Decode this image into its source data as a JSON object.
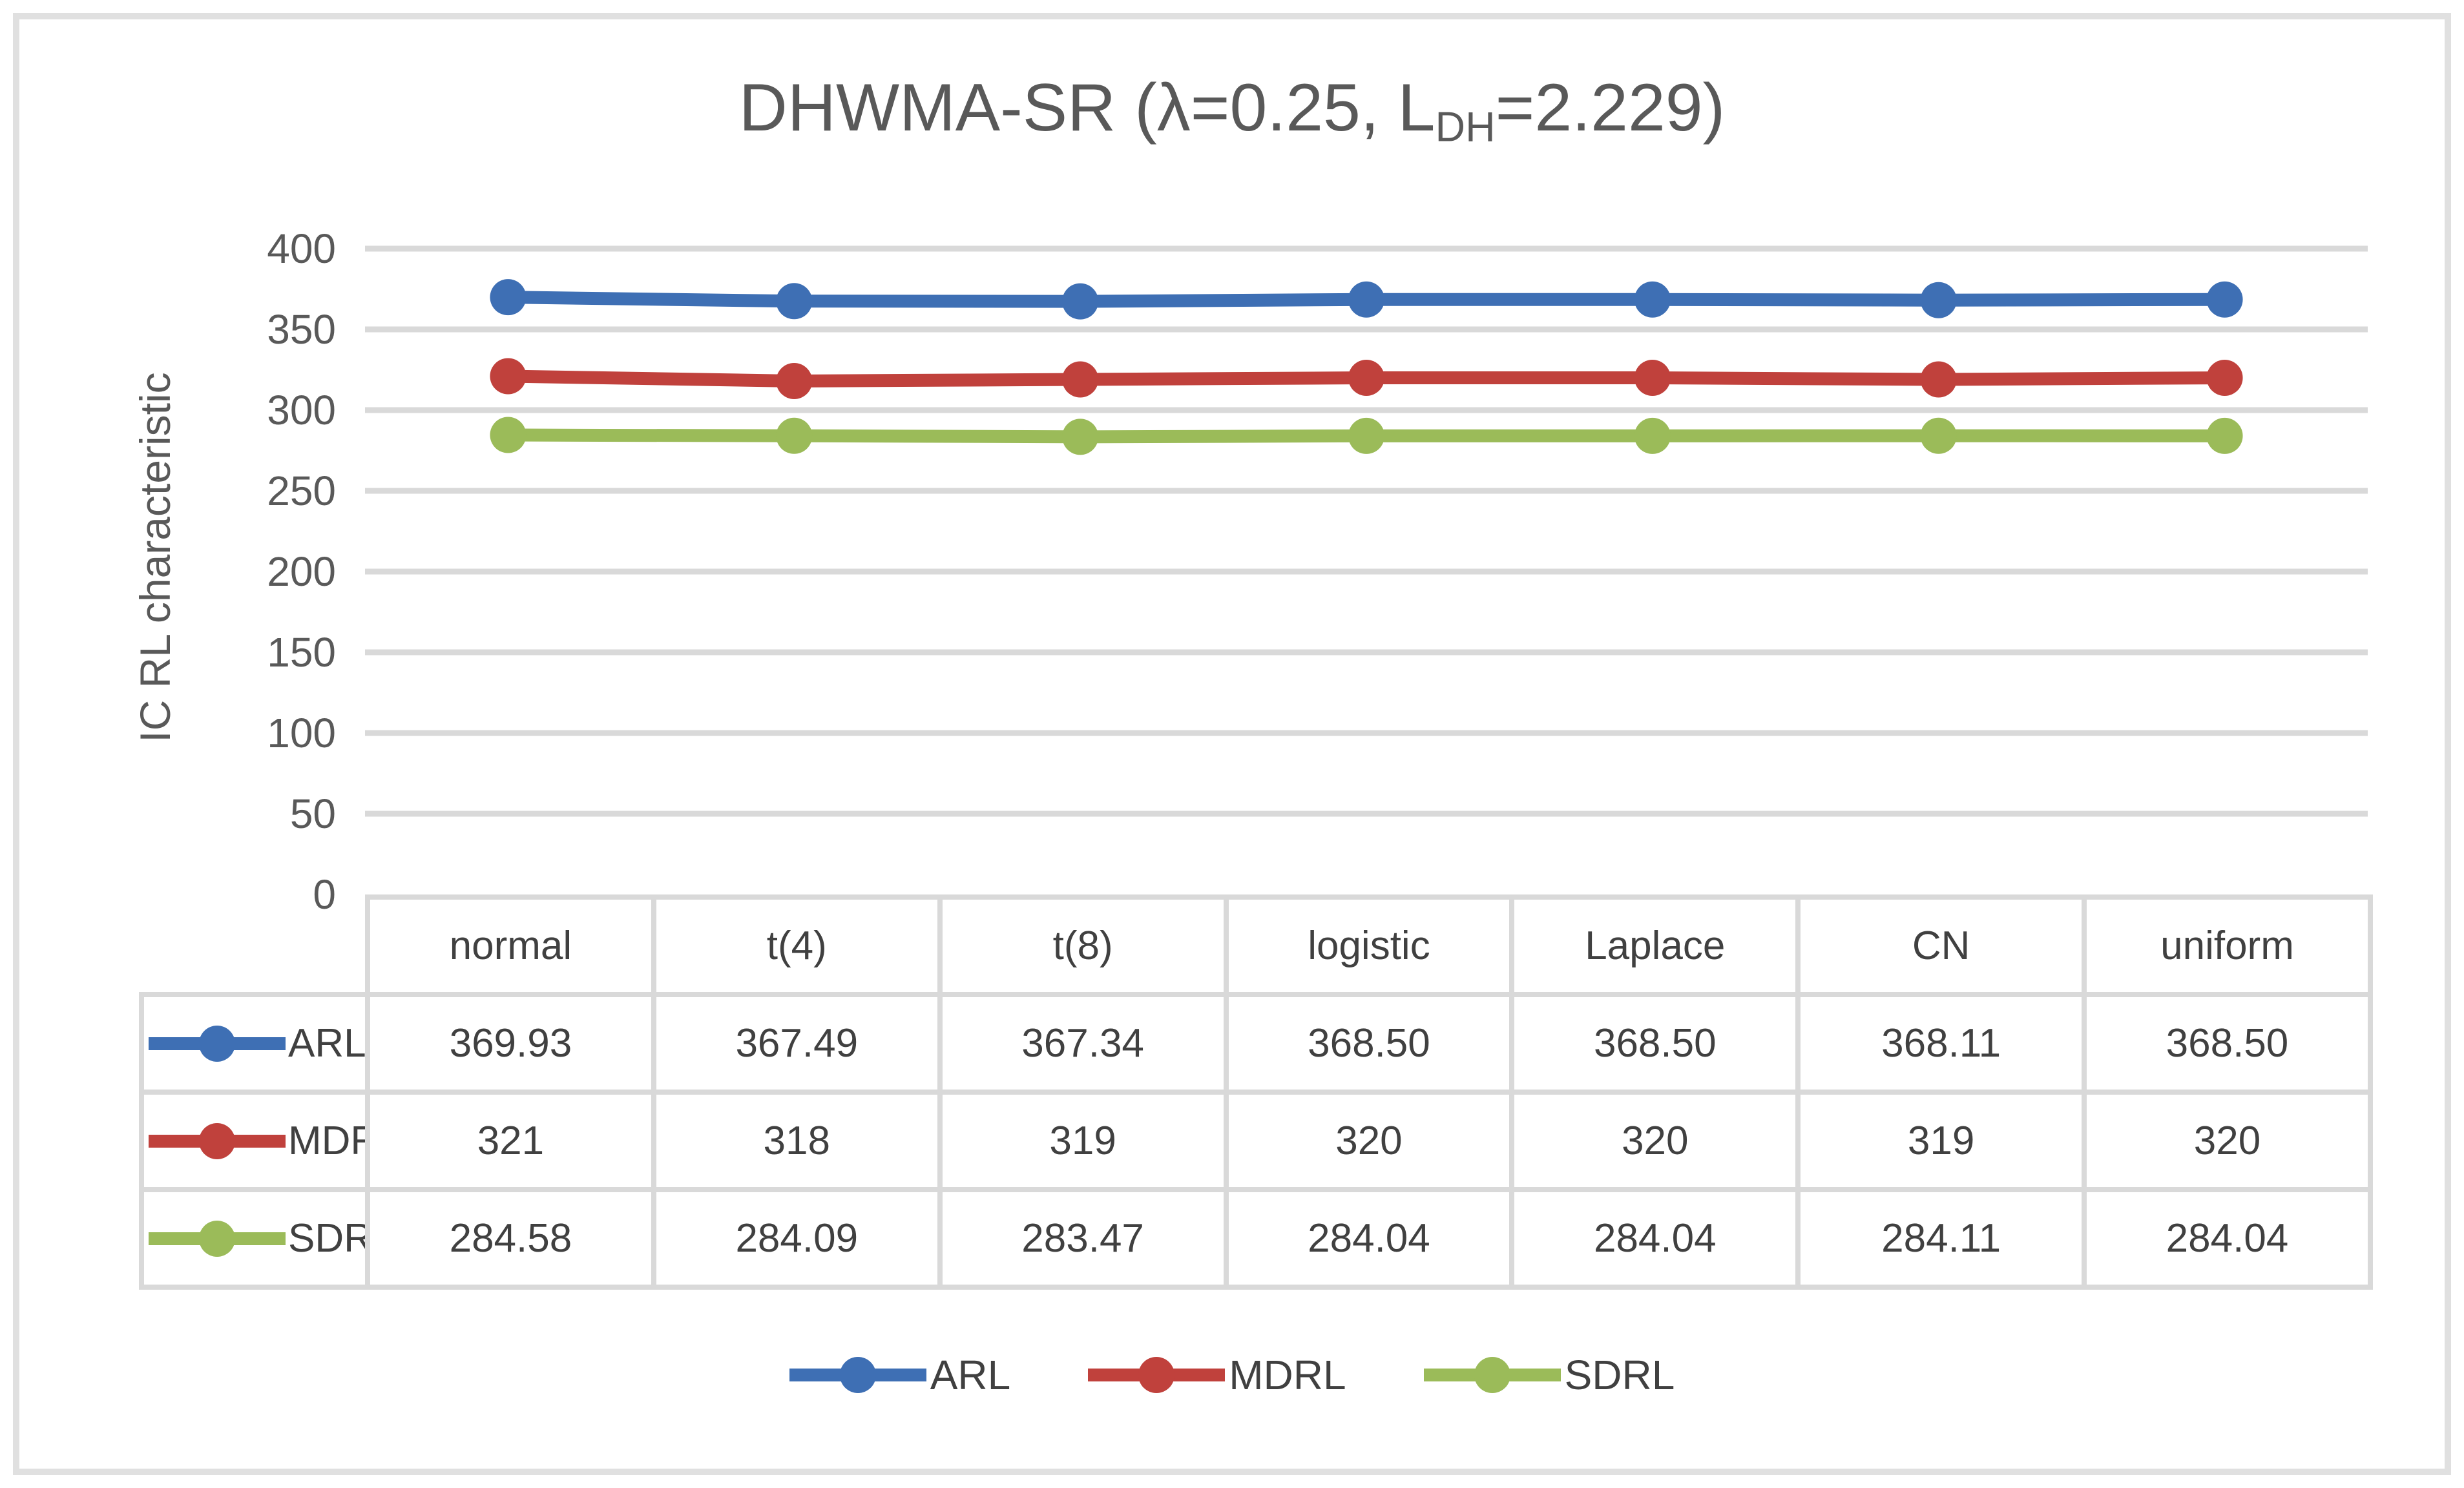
{
  "figure": {
    "title": {
      "prefix": "DHWMA-SR (λ=0.25, L",
      "subscript": "DH",
      "suffix": "=2.229)"
    },
    "y_axis_title": "IC RL characteristic"
  },
  "chart_data": {
    "type": "line",
    "title": "DHWMA-SR (λ=0.25, L_DH=2.229)",
    "xlabel": "",
    "ylabel": "IC RL characteristic",
    "categories": [
      "normal",
      "t(4)",
      "t(8)",
      "logistic",
      "Laplace",
      "CN",
      "uniform"
    ],
    "series": [
      {
        "name": "ARL",
        "color": "#3e6fb4",
        "values": [
          369.93,
          367.49,
          367.34,
          368.5,
          368.5,
          368.11,
          368.5
        ],
        "display": [
          "369.93",
          "367.49",
          "367.34",
          "368.50",
          "368.50",
          "368.11",
          "368.50"
        ]
      },
      {
        "name": "MDRL",
        "color": "#c0413c",
        "values": [
          321,
          318,
          319,
          320,
          320,
          319,
          320
        ],
        "display": [
          "321",
          "318",
          "319",
          "320",
          "320",
          "319",
          "320"
        ]
      },
      {
        "name": "SDRL",
        "color": "#9bbb59",
        "values": [
          284.58,
          284.09,
          283.47,
          284.04,
          284.04,
          284.11,
          284.04
        ],
        "display": [
          "284.58",
          "284.09",
          "283.47",
          "284.04",
          "284.04",
          "284.11",
          "284.04"
        ]
      }
    ],
    "ylim": [
      0,
      400
    ],
    "yticks": [
      0,
      50,
      100,
      150,
      200,
      250,
      300,
      350,
      400
    ],
    "grid": true,
    "legend_position": "bottom",
    "legend_labels": [
      "ARL",
      "MDRL",
      "SDRL"
    ],
    "data_table": true,
    "marker": "circle"
  },
  "colors": {
    "gridline": "#d9d9d9",
    "table_border": "#d9d9d9",
    "axis_text": "#595959",
    "table_text": "#404040",
    "figure_border": "#e0e0e0"
  }
}
